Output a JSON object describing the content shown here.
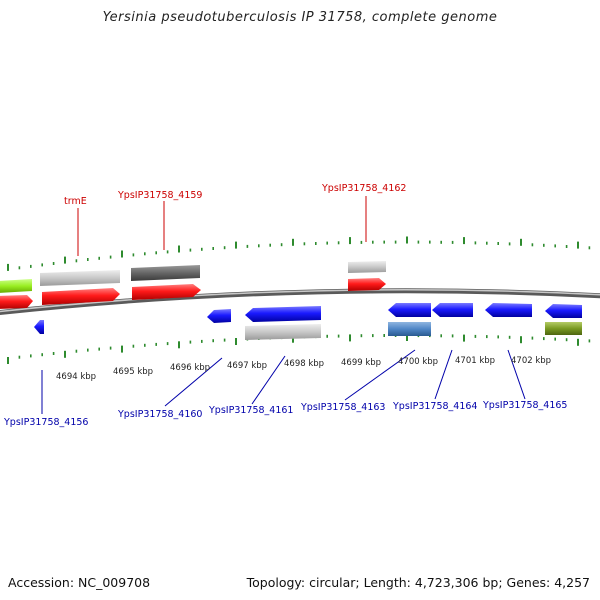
{
  "title": "Yersinia pseudotuberculosis IP 31758, complete genome",
  "footer": {
    "accession": "Accession: NC_009708",
    "summary": "Topology: circular; Length: 4,723,306 bp; Genes: 4,257"
  },
  "colors": {
    "tick": "#2e8b2e",
    "backbone": "#8a8a8a",
    "upper_label": "#cc0000",
    "lower_label": "#0000aa",
    "red_cds": "#ff1a1a",
    "blue_cds": "#1a1aff",
    "light_gray_rna": "#c8c8c8",
    "dark_gray": "#666666",
    "lime": "#99ee22",
    "steel_blue": "#4f86c6",
    "olive": "#7a9a22"
  },
  "scale_labels": [
    "4694 kbp",
    "4695 kbp",
    "4696 kbp",
    "4697 kbp",
    "4698 kbp",
    "4699 kbp",
    "4700 kbp",
    "4701 kbp",
    "4702 kbp"
  ],
  "upper_gene_labels": [
    "trmE",
    "YpsIP31758_4159",
    "YpsIP31758_4162"
  ],
  "lower_gene_labels": [
    "YpsIP31758_4156",
    "YpsIP31758_4160",
    "YpsIP31758_4161",
    "YpsIP31758_4163",
    "YpsIP31758_4164",
    "YpsIP31758_4165"
  ]
}
